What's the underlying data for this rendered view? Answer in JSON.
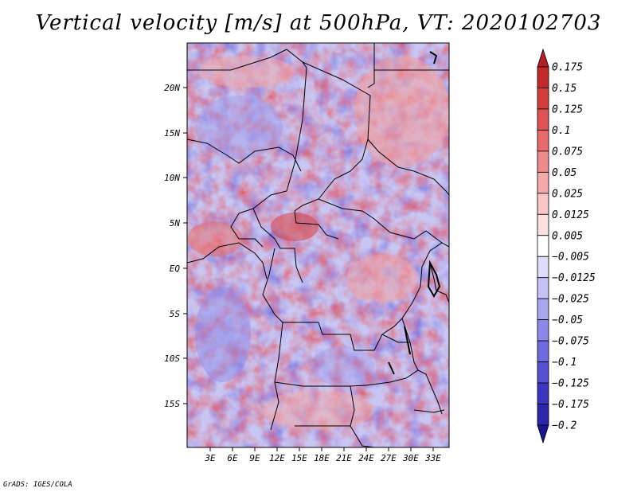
{
  "title": "Vertical velocity [m/s] at 500hPa, VT: 2020102703",
  "credit": "GrADS: IGES/COLA",
  "map": {
    "lat_labels": [
      "20N",
      "15N",
      "10N",
      "5N",
      "EQ",
      "5S",
      "10S",
      "15S"
    ],
    "lon_labels": [
      "3E",
      "6E",
      "9E",
      "12E",
      "15E",
      "18E",
      "21E",
      "24E",
      "27E",
      "30E",
      "33E"
    ],
    "extent": {
      "lon_min": 0,
      "lon_max": 35,
      "lat_min": -20,
      "lat_max": 25
    }
  },
  "colorbar": {
    "levels": [
      "0.175",
      "0.15",
      "0.125",
      "0.1",
      "0.075",
      "0.05",
      "0.025",
      "0.0125",
      "0.005",
      "−0.005",
      "−0.0125",
      "−0.025",
      "−0.05",
      "−0.075",
      "−0.1",
      "−0.125",
      "−0.175",
      "−0.2"
    ],
    "colors": [
      "#b51f27",
      "#c52a2a",
      "#d43b3b",
      "#e05252",
      "#e86a6a",
      "#ef8a8a",
      "#f4a8a8",
      "#f8c6c4",
      "#fbe0de",
      "#ffffff",
      "#dddcf9",
      "#c4c2f4",
      "#a9a6ef",
      "#8d88e8",
      "#706ae0",
      "#5550d3",
      "#3b36c1",
      "#2a25ab",
      "#1b1690"
    ]
  }
}
